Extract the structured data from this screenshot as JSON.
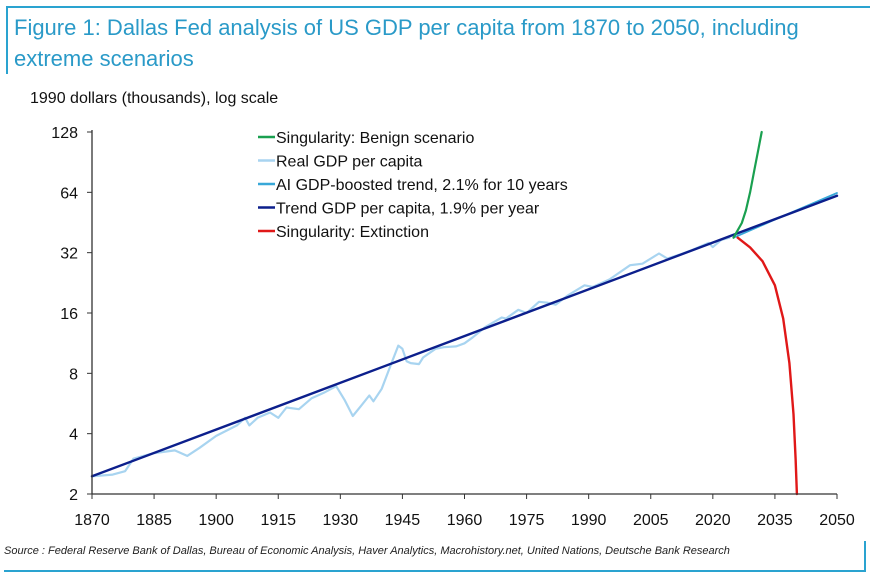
{
  "chart_data": {
    "type": "line",
    "title": "Figure 1: Dallas Fed analysis of US GDP per capita from 1870 to 2050, including extreme scenarios",
    "ylabel": "1990 dollars (thousands), log scale",
    "xlabel": "",
    "source": "Source : Federal Reserve Bank of Dallas, Bureau of Economic Analysis, Haver Analytics, Macrohistory.net, United Nations, Deutsche Bank Research",
    "xlim": [
      1870,
      2050
    ],
    "ylim": [
      2,
      128
    ],
    "yscale": "log2",
    "x_ticks": [
      "1870",
      "1885",
      "1900",
      "1915",
      "1930",
      "1945",
      "1960",
      "1975",
      "1990",
      "2005",
      "2020",
      "2035",
      "2050"
    ],
    "y_ticks": [
      "2",
      "4",
      "8",
      "16",
      "32",
      "64",
      "128"
    ],
    "grid": false,
    "legend_position": "top-center",
    "series": [
      {
        "name": "Singularity: Benign scenario",
        "color": "#1aa050",
        "points": [
          [
            2025,
            38
          ],
          [
            2027,
            45
          ],
          [
            2028,
            52
          ],
          [
            2029,
            64
          ],
          [
            2030,
            82
          ],
          [
            2031,
            105
          ],
          [
            2031.8,
            128
          ]
        ]
      },
      {
        "name": "Real GDP per capita",
        "color": "#a8d4f0",
        "points": [
          [
            1870,
            2.45
          ],
          [
            1875,
            2.5
          ],
          [
            1878,
            2.6
          ],
          [
            1880,
            3.0
          ],
          [
            1885,
            3.2
          ],
          [
            1890,
            3.3
          ],
          [
            1893,
            3.1
          ],
          [
            1896,
            3.4
          ],
          [
            1900,
            3.9
          ],
          [
            1905,
            4.4
          ],
          [
            1907,
            4.8
          ],
          [
            1908,
            4.4
          ],
          [
            1910,
            4.8
          ],
          [
            1913,
            5.1
          ],
          [
            1915,
            4.8
          ],
          [
            1917,
            5.4
          ],
          [
            1920,
            5.3
          ],
          [
            1923,
            6.0
          ],
          [
            1926,
            6.4
          ],
          [
            1929,
            6.9
          ],
          [
            1931,
            5.9
          ],
          [
            1933,
            4.9
          ],
          [
            1935,
            5.5
          ],
          [
            1937,
            6.2
          ],
          [
            1938,
            5.8
          ],
          [
            1940,
            6.7
          ],
          [
            1942,
            8.6
          ],
          [
            1944,
            11.0
          ],
          [
            1945,
            10.6
          ],
          [
            1946,
            9.2
          ],
          [
            1947,
            9.0
          ],
          [
            1949,
            8.9
          ],
          [
            1950,
            9.6
          ],
          [
            1953,
            10.6
          ],
          [
            1955,
            10.8
          ],
          [
            1958,
            10.9
          ],
          [
            1960,
            11.3
          ],
          [
            1962,
            12.1
          ],
          [
            1965,
            13.6
          ],
          [
            1969,
            15.2
          ],
          [
            1970,
            15.0
          ],
          [
            1973,
            16.6
          ],
          [
            1975,
            16.0
          ],
          [
            1978,
            18.2
          ],
          [
            1980,
            18.0
          ],
          [
            1982,
            17.6
          ],
          [
            1985,
            19.6
          ],
          [
            1989,
            22.0
          ],
          [
            1991,
            21.6
          ],
          [
            1995,
            23.5
          ],
          [
            2000,
            27.7
          ],
          [
            2003,
            28.2
          ],
          [
            2007,
            31.7
          ],
          [
            2009,
            29.9
          ],
          [
            2012,
            31.3
          ],
          [
            2015,
            33.0
          ],
          [
            2019,
            35.8
          ],
          [
            2020,
            34.1
          ],
          [
            2022,
            37.0
          ],
          [
            2024,
            38.0
          ]
        ]
      },
      {
        "name": "AI GDP-boosted trend, 2.1% for 10 years",
        "color": "#38a8d8",
        "points": [
          [
            2025,
            38
          ],
          [
            2035,
            46.8
          ],
          [
            2050,
            63.5
          ]
        ]
      },
      {
        "name": "Trend GDP per capita, 1.9% per year",
        "color": "#0c1f8c",
        "points": [
          [
            1870,
            2.45
          ],
          [
            2050,
            61.5
          ]
        ]
      },
      {
        "name": "Singularity: Extinction",
        "color": "#e01818",
        "points": [
          [
            2026,
            38
          ],
          [
            2029,
            34
          ],
          [
            2032,
            29
          ],
          [
            2035,
            22
          ],
          [
            2037,
            15
          ],
          [
            2038.5,
            9
          ],
          [
            2039.5,
            5
          ],
          [
            2040,
            3
          ],
          [
            2040.3,
            2
          ]
        ]
      }
    ]
  }
}
